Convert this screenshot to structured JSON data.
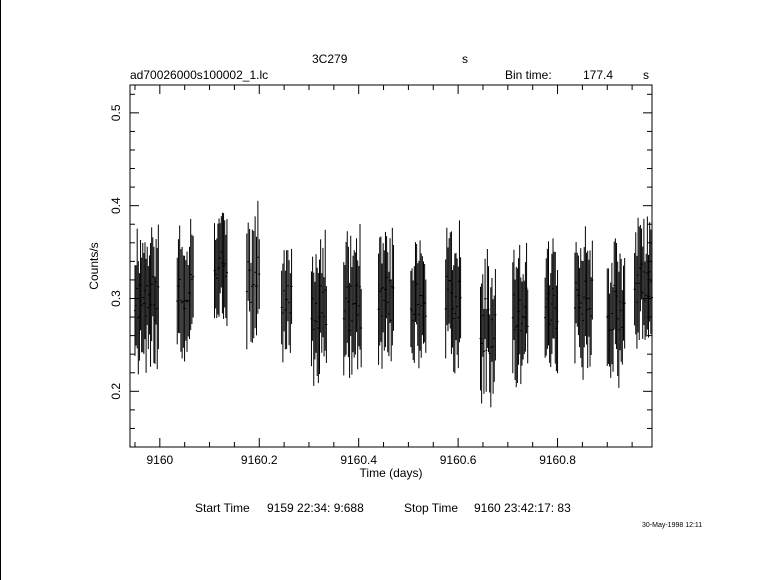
{
  "header": {
    "source": "3C279",
    "unit": "s",
    "file": "ad70026000s100002_1.lc",
    "bin_label": "Bin time:",
    "bin_value": "177.4",
    "bin_unit": "s"
  },
  "footer": {
    "start_label": "Start Time",
    "start_value": "9159 22:34: 9:688",
    "stop_label": "Stop Time",
    "stop_value": "9160 23:42:17: 83",
    "timestamp": "30-May-1998 12:11"
  },
  "chart_data": {
    "type": "scatter",
    "title": "",
    "xlabel": "Time (days)",
    "ylabel": "Counts/s",
    "xlim": [
      9159.94,
      9160.99
    ],
    "ylim": [
      0.14,
      0.53
    ],
    "x_major_ticks": [
      9160.0,
      9160.2,
      9160.4,
      9160.6,
      9160.8
    ],
    "x_tick_labels": [
      "9160",
      "9160.2",
      "9160.4",
      "9160.6",
      "9160.8"
    ],
    "x_minor_step": 0.05,
    "y_major_ticks": [
      0.2,
      0.3,
      0.4,
      0.5
    ],
    "y_tick_labels": [
      "0.2",
      "0.3",
      "0.4",
      "0.5"
    ],
    "y_minor_step": 0.02,
    "grid": false,
    "legend": "none",
    "color": "#000000",
    "segments": [
      {
        "x0": 9159.95,
        "x1": 9159.997,
        "n": 22,
        "base": 0.3,
        "amp": 0.025,
        "err": 0.055,
        "seed": 11
      },
      {
        "x0": 9160.035,
        "x1": 9160.067,
        "n": 14,
        "base": 0.31,
        "amp": 0.025,
        "err": 0.05,
        "seed": 23
      },
      {
        "x0": 9160.11,
        "x1": 9160.135,
        "n": 12,
        "base": 0.34,
        "amp": 0.02,
        "err": 0.048,
        "seed": 37
      },
      {
        "x0": 9160.175,
        "x1": 9160.2,
        "n": 10,
        "base": 0.32,
        "amp": 0.025,
        "err": 0.05,
        "seed": 41
      },
      {
        "x0": 9160.245,
        "x1": 9160.265,
        "n": 9,
        "base": 0.3,
        "amp": 0.02,
        "err": 0.05,
        "seed": 53
      },
      {
        "x0": 9160.305,
        "x1": 9160.335,
        "n": 14,
        "base": 0.29,
        "amp": 0.025,
        "err": 0.055,
        "seed": 67
      },
      {
        "x0": 9160.37,
        "x1": 9160.405,
        "n": 16,
        "base": 0.29,
        "amp": 0.025,
        "err": 0.055,
        "seed": 71
      },
      {
        "x0": 9160.44,
        "x1": 9160.47,
        "n": 14,
        "base": 0.3,
        "amp": 0.025,
        "err": 0.052,
        "seed": 83
      },
      {
        "x0": 9160.505,
        "x1": 9160.535,
        "n": 14,
        "base": 0.3,
        "amp": 0.025,
        "err": 0.052,
        "seed": 97
      },
      {
        "x0": 9160.575,
        "x1": 9160.605,
        "n": 14,
        "base": 0.3,
        "amp": 0.025,
        "err": 0.055,
        "seed": 101
      },
      {
        "x0": 9160.645,
        "x1": 9160.675,
        "n": 14,
        "base": 0.27,
        "amp": 0.03,
        "err": 0.055,
        "seed": 113
      },
      {
        "x0": 9160.71,
        "x1": 9160.74,
        "n": 14,
        "base": 0.29,
        "amp": 0.025,
        "err": 0.052,
        "seed": 127
      },
      {
        "x0": 9160.775,
        "x1": 9160.8,
        "n": 12,
        "base": 0.29,
        "amp": 0.025,
        "err": 0.052,
        "seed": 131
      },
      {
        "x0": 9160.835,
        "x1": 9160.87,
        "n": 16,
        "base": 0.3,
        "amp": 0.025,
        "err": 0.052,
        "seed": 149
      },
      {
        "x0": 9160.9,
        "x1": 9160.935,
        "n": 16,
        "base": 0.29,
        "amp": 0.025,
        "err": 0.052,
        "seed": 157
      },
      {
        "x0": 9160.955,
        "x1": 9160.99,
        "n": 16,
        "base": 0.32,
        "amp": 0.025,
        "err": 0.05,
        "seed": 163
      }
    ]
  }
}
